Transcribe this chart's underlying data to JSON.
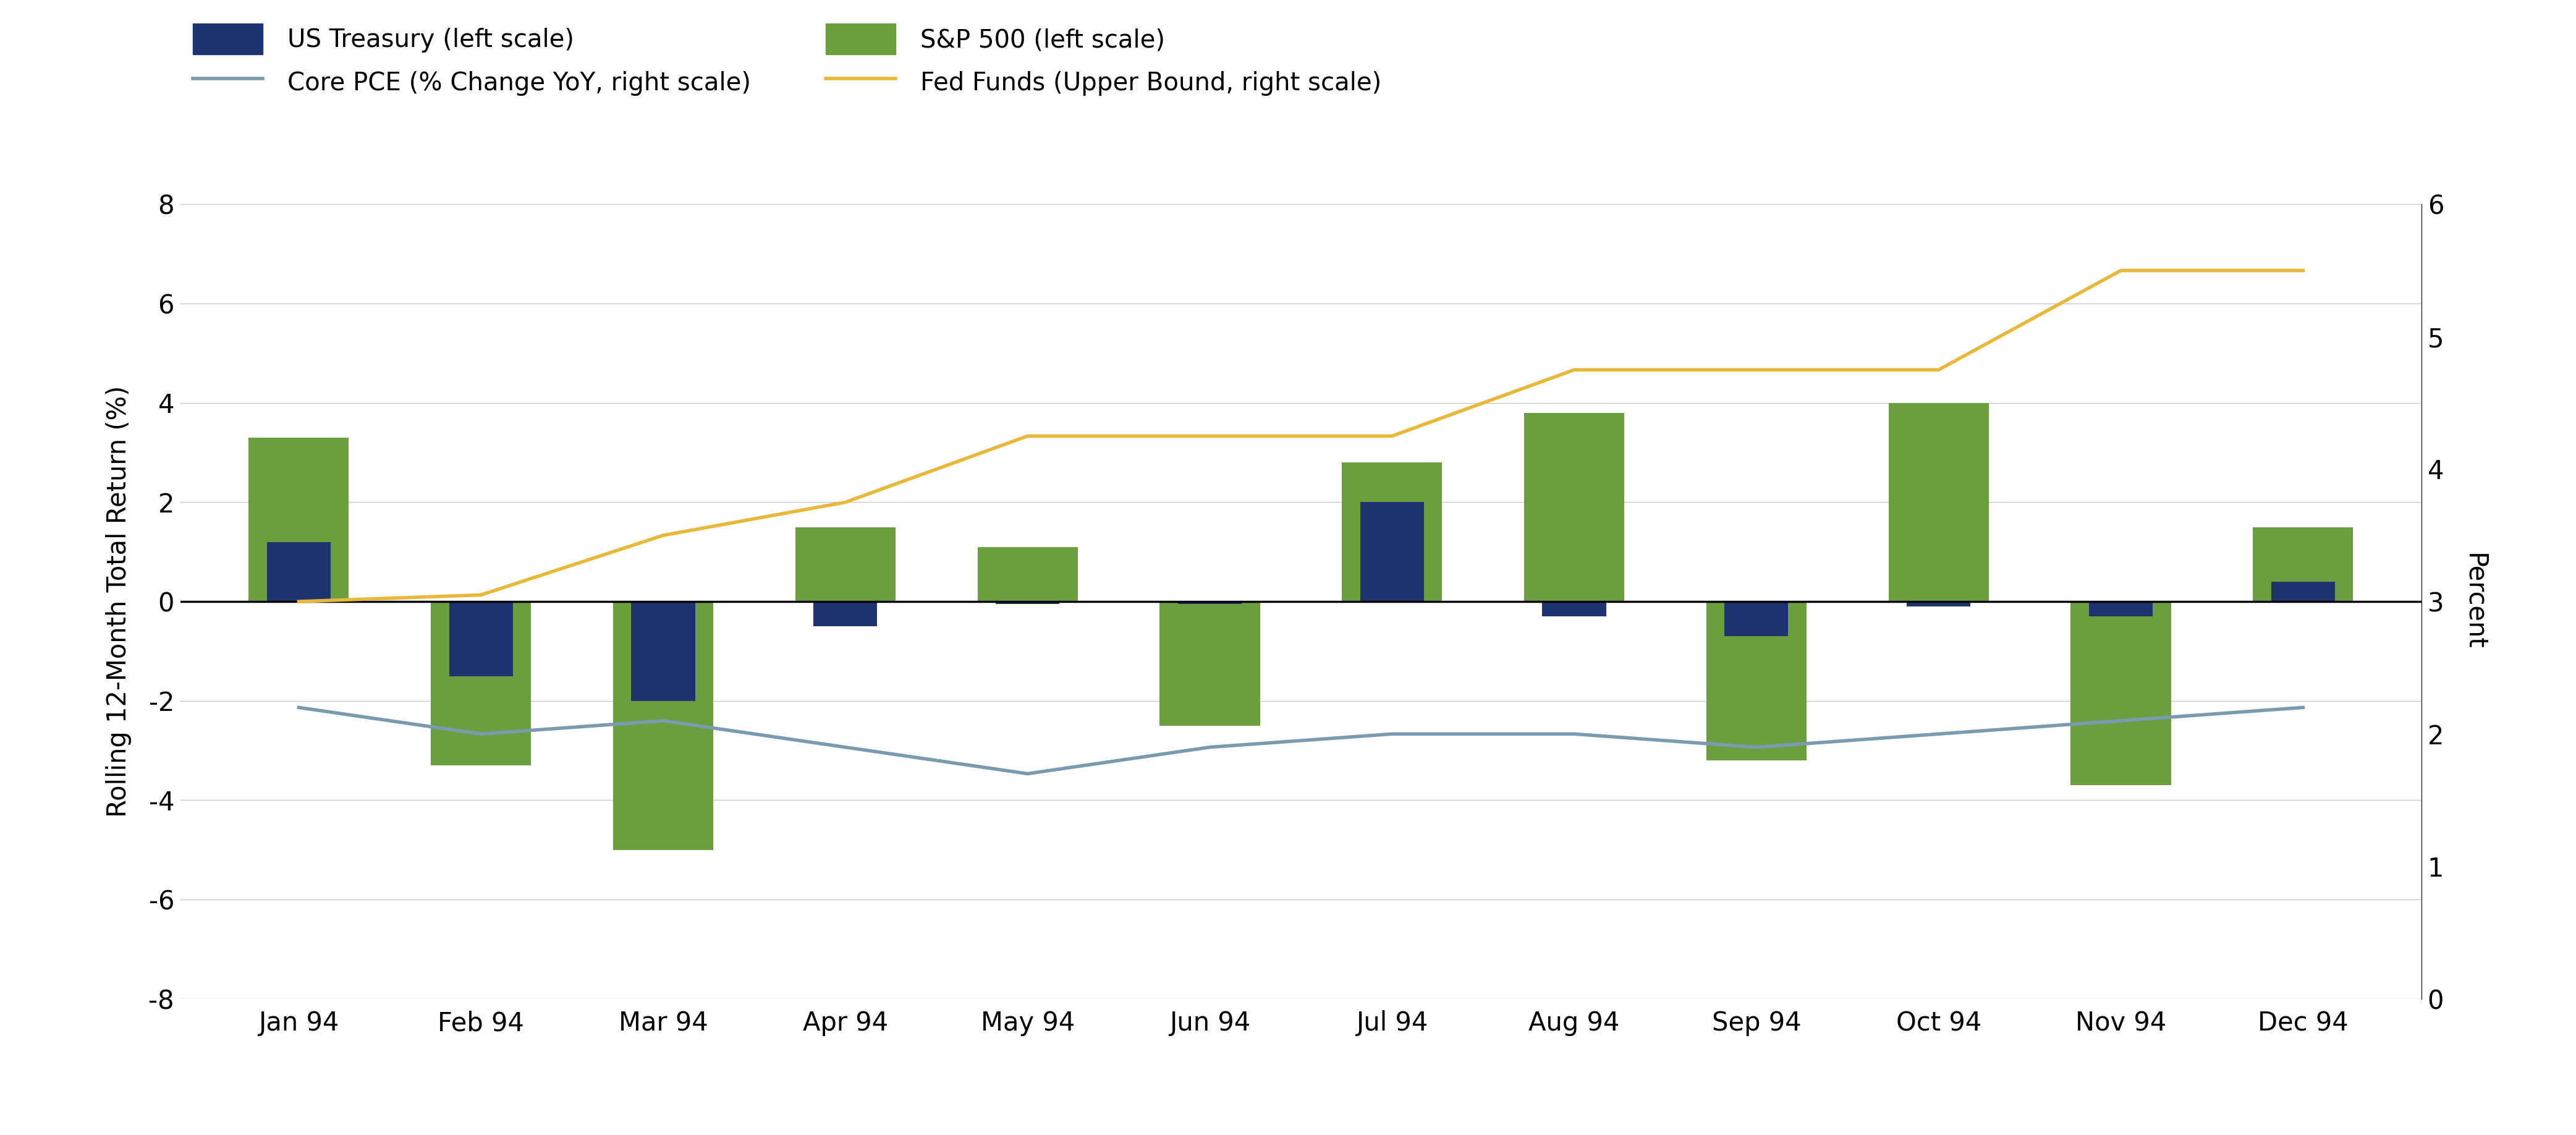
{
  "months": [
    "Jan 94",
    "Feb 94",
    "Mar 94",
    "Apr 94",
    "May 94",
    "Jun 94",
    "Jul 94",
    "Aug 94",
    "Sep 94",
    "Oct 94",
    "Nov 94",
    "Dec 94"
  ],
  "us_treasury": [
    1.2,
    -1.5,
    -2.0,
    -0.5,
    -0.05,
    -0.05,
    2.0,
    -0.3,
    -0.7,
    -0.1,
    -0.3,
    0.4
  ],
  "sp500": [
    3.3,
    -3.3,
    -5.0,
    1.5,
    1.1,
    -2.5,
    2.8,
    3.8,
    -3.2,
    4.0,
    -3.7,
    1.5
  ],
  "core_pce_right": [
    2.2,
    2.0,
    2.1,
    1.9,
    1.7,
    1.9,
    2.0,
    2.0,
    1.9,
    2.0,
    2.1,
    2.2
  ],
  "fed_funds_right": [
    3.0,
    3.05,
    3.5,
    3.75,
    4.25,
    4.25,
    4.25,
    4.75,
    4.75,
    4.75,
    5.5,
    5.5
  ],
  "treasury_color": "#1F3370",
  "sp500_color": "#6B9E3E",
  "core_pce_color": "#7A9BAF",
  "fed_funds_color": "#E8B83A",
  "ylim_left": [
    -8,
    8
  ],
  "ylim_right": [
    0,
    6
  ],
  "ylabel_left": "Rolling 12-Month Total Return (%)",
  "ylabel_right": "Percent",
  "legend_labels": [
    "US Treasury (left scale)",
    "S&P 500 (left scale)",
    "Core PCE (% Change YoY, right scale)",
    "Fed Funds (Upper Bound, right scale)"
  ],
  "background_color": "#ffffff",
  "grid_color": "#c8c8c8",
  "sp500_bar_width": 0.55,
  "treasury_bar_width": 0.35,
  "line_width": 4.0
}
